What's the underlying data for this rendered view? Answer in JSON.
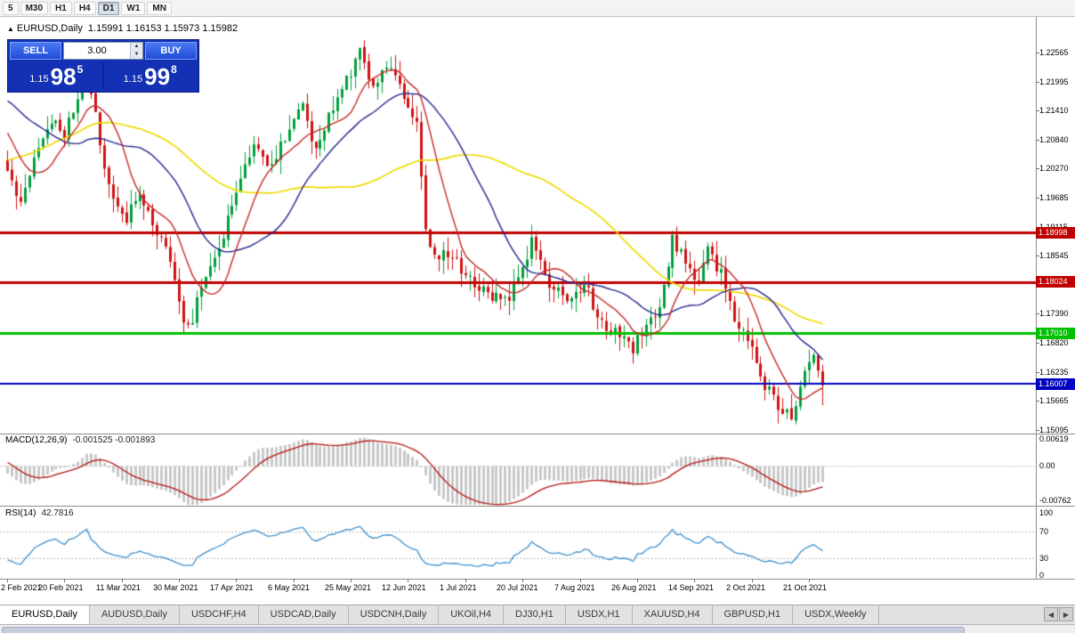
{
  "toolbar": {
    "timeframes": [
      {
        "label": "5",
        "active": false
      },
      {
        "label": "M30",
        "active": false
      },
      {
        "label": "H1",
        "active": false
      },
      {
        "label": "H4",
        "active": false
      },
      {
        "label": "D1",
        "active": true
      },
      {
        "label": "W1",
        "active": false
      },
      {
        "label": "MN",
        "active": false
      }
    ]
  },
  "chart": {
    "title_symbol": "EURUSD,Daily",
    "title_ohlc": "1.15991 1.16153 1.15973 1.15982",
    "price_axis": [
      "1.22565",
      "1.21995",
      "1.21410",
      "1.20840",
      "1.20270",
      "1.19685",
      "1.19115",
      "1.18545",
      "1.17975",
      "1.17390",
      "1.16820",
      "1.16235",
      "1.15665",
      "1.15095"
    ],
    "hlines": [
      {
        "label": "1.18998",
        "price": 1.18998,
        "color": "#C00000",
        "width": 3
      },
      {
        "label": "1.18024",
        "price": 1.18024,
        "color": "#C00000",
        "width": 3
      },
      {
        "label": "1.17010",
        "price": 1.1701,
        "color": "#00C000",
        "width": 3
      },
      {
        "label": "1.16007",
        "price": 1.16007,
        "color": "#0000C0",
        "width": 2
      }
    ]
  },
  "trade_panel": {
    "sell_label": "SELL",
    "buy_label": "BUY",
    "volume": "3.00",
    "sell_small": "1.15",
    "sell_big": "98",
    "sell_sup": "5",
    "buy_small": "1.15",
    "buy_big": "99",
    "buy_sup": "8"
  },
  "macd": {
    "label": "MACD(12,26,9)",
    "values": "-0.001525 -0.001893",
    "axis_top": "0.00619",
    "axis_zero": "0.00",
    "axis_bottom": "-0.00762"
  },
  "rsi": {
    "label": "RSI(14)",
    "value": "42.7816",
    "levels": [
      "100",
      "70",
      "30",
      "0"
    ]
  },
  "date_axis": [
    "2 Feb 2021",
    "20 Feb 2021",
    "11 Mar 2021",
    "30 Mar 2021",
    "17 Apr 2021",
    "6 May 2021",
    "25 May 2021",
    "12 Jun 2021",
    "1 Jul 2021",
    "20 Jul 2021",
    "7 Aug 2021",
    "26 Aug 2021",
    "14 Sep 2021",
    "2 Oct 2021",
    "21 Oct 2021"
  ],
  "tabs": [
    {
      "label": "EURUSD,Daily",
      "active": true
    },
    {
      "label": "AUDUSD,Daily",
      "active": false
    },
    {
      "label": "USDCHF,H4",
      "active": false
    },
    {
      "label": "USDCAD,Daily",
      "active": false
    },
    {
      "label": "USDCNH,Daily",
      "active": false
    },
    {
      "label": "UKOil,H4",
      "active": false
    },
    {
      "label": "DJ30,H1",
      "active": false
    },
    {
      "label": "USDX,H1",
      "active": false
    },
    {
      "label": "XAUUSD,H4",
      "active": false
    },
    {
      "label": "GBPUSD,H1",
      "active": false
    },
    {
      "label": "USDX,Weekly",
      "active": false
    }
  ],
  "chart_data": {
    "type": "candlestick",
    "symbol": "EURUSD",
    "timeframe": "Daily",
    "x_range": [
      "2 Feb 2021",
      "21 Oct 2021"
    ],
    "y_range": [
      1.15095,
      1.22565
    ],
    "last_ohlc": {
      "open": 1.15991,
      "high": 1.16153,
      "low": 1.15973,
      "close": 1.15982
    },
    "horizontal_levels": [
      1.18998,
      1.18024,
      1.1701,
      1.16007
    ],
    "moving_averages": [
      {
        "period": 10,
        "color": "#C62828",
        "width": 1.4
      },
      {
        "period": 25,
        "color": "#24248F",
        "width": 1.4
      },
      {
        "period": 60,
        "color": "#EFDA00",
        "width": 1.7
      }
    ],
    "indicators": [
      {
        "name": "MACD",
        "params": [
          12,
          26,
          9
        ],
        "current_values": [
          -0.001525,
          -0.001893
        ],
        "axis": [
          0.00619,
          0,
          -0.00762
        ]
      },
      {
        "name": "RSI",
        "params": [
          14
        ],
        "current_value": 42.7816,
        "axis": [
          0,
          100
        ],
        "levels": [
          30,
          70
        ]
      }
    ],
    "style": {
      "up_color": "#009F3C",
      "down_color": "#CE1212",
      "macd_hist": "#C8C8C8",
      "macd_signal": "#B51414",
      "rsi_color": "#3D8FCB"
    },
    "n_candles": 186,
    "price_waypoints": [
      [
        -60,
        1.18
      ],
      [
        -45,
        1.19
      ],
      [
        -30,
        1.21
      ],
      [
        -15,
        1.225
      ],
      [
        -5,
        1.21
      ],
      [
        0,
        1.203
      ],
      [
        3,
        1.1958
      ],
      [
        6,
        1.205
      ],
      [
        10,
        1.2125
      ],
      [
        13,
        1.209
      ],
      [
        16,
        1.217
      ],
      [
        18,
        1.2243
      ],
      [
        21,
        1.207
      ],
      [
        23,
        1.199
      ],
      [
        27,
        1.1925
      ],
      [
        30,
        1.199
      ],
      [
        33,
        1.192
      ],
      [
        36,
        1.1875
      ],
      [
        39,
        1.176
      ],
      [
        41,
        1.1706
      ],
      [
        44,
        1.179
      ],
      [
        48,
        1.187
      ],
      [
        52,
        1.199
      ],
      [
        56,
        1.208
      ],
      [
        60,
        1.203
      ],
      [
        64,
        1.211
      ],
      [
        67,
        1.215
      ],
      [
        70,
        1.206
      ],
      [
        74,
        1.215
      ],
      [
        78,
        1.222
      ],
      [
        80,
        1.2255
      ],
      [
        83,
        1.219
      ],
      [
        86,
        1.223
      ],
      [
        90,
        1.2175
      ],
      [
        93,
        1.212
      ],
      [
        95,
        1.19
      ],
      [
        97,
        1.1858
      ],
      [
        101,
        1.1852
      ],
      [
        106,
        1.18
      ],
      [
        111,
        1.177
      ],
      [
        114,
        1.1765
      ],
      [
        119,
        1.188
      ],
      [
        123,
        1.179
      ],
      [
        127,
        1.1772
      ],
      [
        131,
        1.18
      ],
      [
        135,
        1.1718
      ],
      [
        140,
        1.17
      ],
      [
        142,
        1.1664
      ],
      [
        145,
        1.173
      ],
      [
        148,
        1.1742
      ],
      [
        151,
        1.1888
      ],
      [
        154,
        1.1838
      ],
      [
        157,
        1.18
      ],
      [
        159,
        1.1868
      ],
      [
        162,
        1.182
      ],
      [
        165,
        1.173
      ],
      [
        168,
        1.1698
      ],
      [
        172,
        1.1598
      ],
      [
        175,
        1.156
      ],
      [
        178,
        1.1528
      ],
      [
        181,
        1.1622
      ],
      [
        183,
        1.1652
      ],
      [
        185,
        1.1598
      ]
    ]
  }
}
